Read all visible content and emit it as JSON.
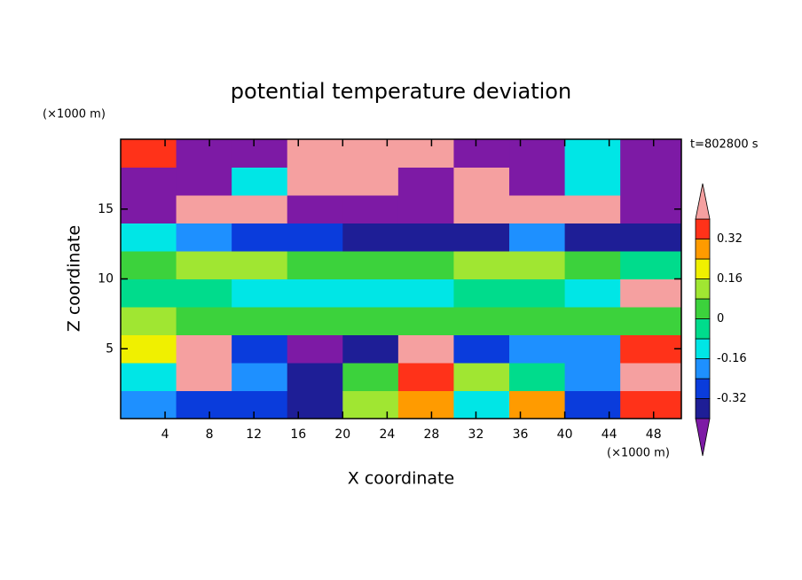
{
  "chart_data": {
    "type": "contour",
    "title": "potential temperature deviation",
    "x_label": "X coordinate",
    "y_label": "Z coordinate",
    "x_unit": "(×1000 m)",
    "y_unit": "(×1000 m)",
    "time_label": "t=802800 s",
    "xlim": [
      0,
      50.5
    ],
    "ylim": [
      0,
      20
    ],
    "xticks": [
      4,
      8,
      12,
      16,
      20,
      24,
      28,
      32,
      36,
      40,
      44,
      48
    ],
    "yticks": [
      5,
      10,
      15
    ],
    "x_edges": [
      0,
      5,
      10,
      15,
      20,
      25,
      30,
      35,
      40,
      45,
      50.5
    ],
    "y_edges": [
      0,
      2,
      4,
      6,
      8,
      10,
      12,
      14,
      16,
      18,
      20
    ],
    "values": [
      [
        -0.2,
        -0.28,
        -0.28,
        -0.36,
        0.12,
        0.28,
        -0.12,
        0.28,
        -0.28,
        0.36
      ],
      [
        -0.12,
        0.45,
        -0.2,
        -0.36,
        0.04,
        0.36,
        0.12,
        -0.04,
        -0.2,
        0.45
      ],
      [
        0.2,
        0.45,
        -0.28,
        -0.45,
        -0.36,
        0.45,
        -0.28,
        -0.2,
        -0.2,
        0.36
      ],
      [
        0.12,
        0.04,
        0.04,
        0.04,
        0.04,
        0.04,
        0.04,
        0.04,
        0.04,
        0.04
      ],
      [
        -0.04,
        -0.04,
        -0.12,
        -0.12,
        -0.12,
        -0.12,
        -0.04,
        -0.04,
        -0.12,
        0.45
      ],
      [
        0.04,
        0.12,
        0.12,
        0.04,
        0.04,
        0.04,
        0.12,
        0.12,
        0.04,
        -0.04
      ],
      [
        -0.12,
        -0.2,
        -0.28,
        -0.28,
        -0.36,
        -0.36,
        -0.36,
        -0.2,
        -0.36,
        -0.36
      ],
      [
        -0.45,
        0.45,
        0.45,
        -0.45,
        -0.45,
        -0.45,
        0.45,
        0.45,
        0.45,
        -0.45
      ],
      [
        -0.45,
        -0.45,
        -0.12,
        0.45,
        0.45,
        -0.45,
        0.45,
        -0.45,
        -0.12,
        -0.45
      ],
      [
        0.36,
        -0.45,
        -0.45,
        0.45,
        0.45,
        0.45,
        -0.45,
        -0.45,
        -0.12,
        -0.45
      ]
    ],
    "levels": [
      -0.4,
      -0.32,
      -0.24,
      -0.16,
      -0.08,
      0,
      0.08,
      0.16,
      0.24,
      0.32,
      0.4
    ],
    "colors": [
      "#7d1aa5",
      "#1e1e96",
      "#0a3cdc",
      "#1e90ff",
      "#00e6e6",
      "#00dc8c",
      "#3cd23c",
      "#a0e632",
      "#f0f000",
      "#ff9b00",
      "#ff3219",
      "#f5a0a0"
    ],
    "colorbar_ticks": [
      0.32,
      0.16,
      0,
      -0.16,
      -0.32
    ]
  }
}
